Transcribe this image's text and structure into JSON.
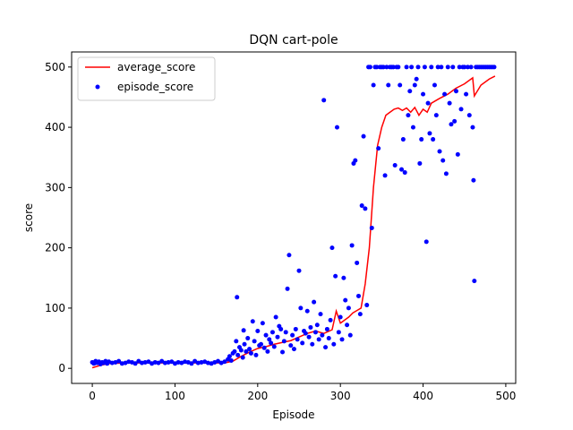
{
  "chart_data": {
    "type": "scatter",
    "title": "DQN cart-pole",
    "xlabel": "Episode",
    "ylabel": "score",
    "xlim": [
      -25,
      512
    ],
    "ylim": [
      -25,
      525
    ],
    "xticks": [
      0,
      100,
      200,
      300,
      400,
      500
    ],
    "yticks": [
      0,
      100,
      200,
      300,
      400,
      500
    ],
    "grid": false,
    "legend_position": "upper left",
    "series": [
      {
        "name": "average_score",
        "kind": "line",
        "color": "#ff0000",
        "x": [
          0,
          10,
          20,
          40,
          60,
          80,
          100,
          120,
          140,
          160,
          170,
          180,
          190,
          200,
          210,
          220,
          230,
          240,
          250,
          260,
          270,
          280,
          290,
          295,
          300,
          305,
          310,
          315,
          320,
          325,
          330,
          335,
          340,
          345,
          350,
          355,
          360,
          365,
          370,
          375,
          380,
          385,
          390,
          395,
          400,
          405,
          410,
          420,
          430,
          440,
          450,
          460,
          462,
          470,
          480,
          487
        ],
        "y": [
          1,
          5,
          8,
          9,
          9,
          9,
          9,
          9,
          9,
          9,
          12,
          20,
          27,
          33,
          36,
          40,
          43,
          46,
          52,
          58,
          62,
          58,
          64,
          95,
          75,
          80,
          85,
          92,
          96,
          100,
          140,
          200,
          300,
          370,
          400,
          420,
          425,
          430,
          432,
          428,
          432,
          425,
          433,
          420,
          430,
          425,
          440,
          448,
          455,
          465,
          472,
          482,
          452,
          470,
          480,
          485
        ]
      },
      {
        "name": "episode_score",
        "kind": "points",
        "color": "#0000ff",
        "x": [
          0,
          2,
          4,
          6,
          8,
          10,
          12,
          14,
          16,
          18,
          20,
          24,
          28,
          32,
          36,
          40,
          44,
          48,
          52,
          56,
          60,
          64,
          68,
          72,
          76,
          80,
          84,
          88,
          92,
          96,
          100,
          104,
          108,
          112,
          116,
          120,
          124,
          128,
          132,
          136,
          140,
          144,
          148,
          152,
          156,
          160,
          164,
          166,
          168,
          170,
          172,
          174,
          175,
          176,
          178,
          180,
          182,
          183,
          184,
          186,
          188,
          190,
          192,
          194,
          196,
          198,
          200,
          202,
          204,
          206,
          208,
          210,
          212,
          214,
          216,
          218,
          220,
          222,
          224,
          226,
          228,
          230,
          232,
          234,
          236,
          238,
          240,
          242,
          244,
          246,
          248,
          250,
          252,
          254,
          256,
          258,
          260,
          262,
          264,
          266,
          268,
          270,
          272,
          274,
          276,
          278,
          280,
          282,
          284,
          286,
          288,
          290,
          292,
          294,
          296,
          298,
          300,
          302,
          304,
          306,
          308,
          310,
          312,
          314,
          316,
          318,
          320,
          322,
          324,
          326,
          328,
          330,
          332,
          334,
          336,
          338,
          340,
          342,
          344,
          346,
          348,
          350,
          352,
          354,
          356,
          358,
          360,
          362,
          364,
          366,
          368,
          370,
          372,
          374,
          376,
          378,
          380,
          382,
          384,
          386,
          388,
          390,
          392,
          394,
          396,
          398,
          400,
          402,
          404,
          406,
          408,
          410,
          412,
          414,
          416,
          418,
          420,
          422,
          424,
          426,
          428,
          430,
          432,
          434,
          436,
          438,
          440,
          442,
          444,
          446,
          448,
          450,
          452,
          454,
          456,
          458,
          460,
          461,
          462,
          464,
          466,
          468,
          470,
          472,
          474,
          476,
          478,
          480,
          482,
          484,
          486
        ],
        "y": [
          10,
          8,
          12,
          9,
          11,
          7,
          10,
          9,
          12,
          8,
          11,
          9,
          10,
          12,
          8,
          9,
          11,
          10,
          8,
          12,
          9,
          10,
          11,
          8,
          10,
          9,
          12,
          9,
          10,
          11,
          8,
          10,
          9,
          11,
          10,
          8,
          12,
          9,
          10,
          11,
          9,
          8,
          10,
          12,
          9,
          11,
          15,
          20,
          13,
          25,
          28,
          45,
          118,
          22,
          35,
          30,
          18,
          63,
          40,
          28,
          50,
          32,
          25,
          78,
          45,
          22,
          62,
          38,
          40,
          75,
          34,
          55,
          28,
          48,
          42,
          60,
          36,
          85,
          52,
          70,
          65,
          27,
          45,
          60,
          132,
          188,
          38,
          55,
          32,
          65,
          48,
          162,
          100,
          42,
          62,
          58,
          95,
          52,
          68,
          40,
          110,
          60,
          72,
          48,
          90,
          55,
          445,
          35,
          65,
          50,
          80,
          200,
          40,
          153,
          400,
          60,
          85,
          48,
          150,
          113,
          72,
          100,
          55,
          204,
          340,
          345,
          175,
          120,
          90,
          270,
          385,
          265,
          105,
          500,
          500,
          233,
          470,
          500,
          500,
          365,
          500,
          500,
          500,
          320,
          500,
          470,
          500,
          500,
          500,
          337,
          500,
          500,
          470,
          330,
          380,
          325,
          500,
          420,
          460,
          500,
          400,
          470,
          480,
          500,
          340,
          380,
          455,
          500,
          210,
          440,
          390,
          500,
          380,
          470,
          420,
          500,
          360,
          500,
          345,
          455,
          323,
          500,
          440,
          405,
          500,
          410,
          460,
          355,
          500,
          430,
          500,
          500,
          455,
          500,
          420,
          500,
          400,
          312,
          145,
          500,
          500,
          500,
          500,
          500,
          500,
          500,
          500,
          500,
          500,
          500,
          500
        ]
      }
    ]
  }
}
